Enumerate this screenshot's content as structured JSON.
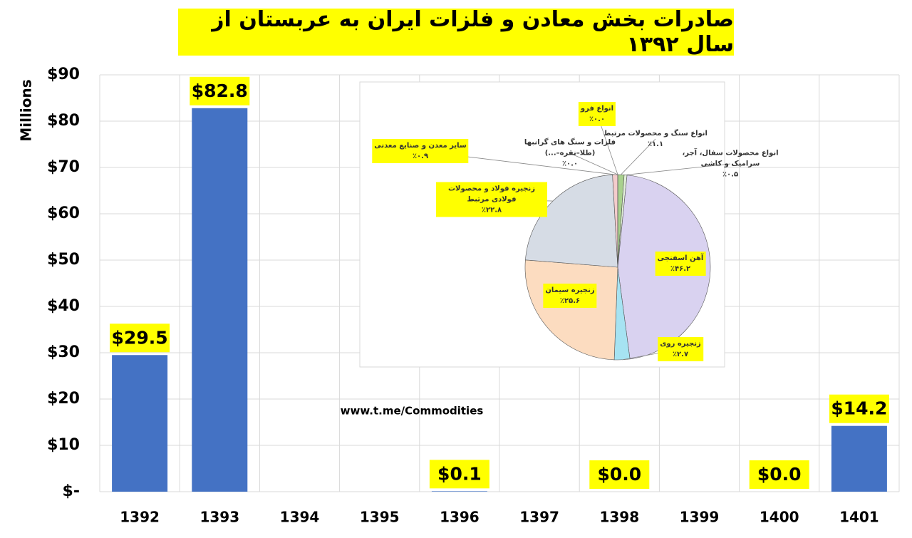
{
  "chart_data": [
    {
      "type": "bar",
      "title": "صادرات بخش معادن و فلزات ایران به عربستان از سال ۱۳۹۲",
      "y_label": "Millions",
      "annotation": "www.t.me/Commodities",
      "categories": [
        "1392",
        "1393",
        "1394",
        "1395",
        "1396",
        "1397",
        "1398",
        "1399",
        "1400",
        "1401"
      ],
      "values": [
        29.5,
        82.8,
        null,
        null,
        0.1,
        null,
        0.0,
        null,
        0.0,
        14.2
      ],
      "value_labels": [
        "$29.5",
        "$82.8",
        null,
        null,
        "$0.1",
        null,
        "$0.0",
        null,
        "$0.0",
        "$14.2"
      ],
      "color": "#4472c4",
      "ylim": [
        0,
        90
      ],
      "yticks": [
        {
          "value": 0,
          "label": "$-"
        },
        {
          "value": 10,
          "label": "$10"
        },
        {
          "value": 20,
          "label": "$20"
        },
        {
          "value": 30,
          "label": "$30"
        },
        {
          "value": 40,
          "label": "$40"
        },
        {
          "value": 50,
          "label": "$50"
        },
        {
          "value": 60,
          "label": "$60"
        },
        {
          "value": 70,
          "label": "$70"
        },
        {
          "value": 80,
          "label": "$80"
        },
        {
          "value": 90,
          "label": "$90"
        }
      ],
      "grid": true
    },
    {
      "type": "pie",
      "categories": [
        "انواع فرو",
        "انواع سنگ و محصولات مرتبط",
        "انواع محصولات سفال، آجر، سرامیک و کاشی",
        "آهن اسفنجی",
        "زنجیره روی",
        "زنجیره سیمان",
        "زنجیره فولاد و محصولات فولادی مرتبط",
        "سایر معدن و صنایع معدنی",
        "فلزات و سنگ های گرانبها (طلا–نقره–...)"
      ],
      "values": [
        0.0,
        1.1,
        0.5,
        46.2,
        2.7,
        25.6,
        22.8,
        0.9,
        0.0
      ],
      "value_labels": [
        "٪۰.۰",
        "٪۱.۱",
        "٪۰.۵",
        "٪۴۶.۲",
        "٪۲.۷",
        "٪۲۵.۶",
        "٪۲۲.۸",
        "٪۰.۹",
        "٪۰.۰"
      ],
      "colors": [
        "#c5e0b4",
        "#a9d18e",
        "#e2f0d9",
        "#d9d2f0",
        "#a6e3f2",
        "#fcdcc0",
        "#d6dce5",
        "#f4cccc",
        "#e7e6e6"
      ]
    }
  ]
}
